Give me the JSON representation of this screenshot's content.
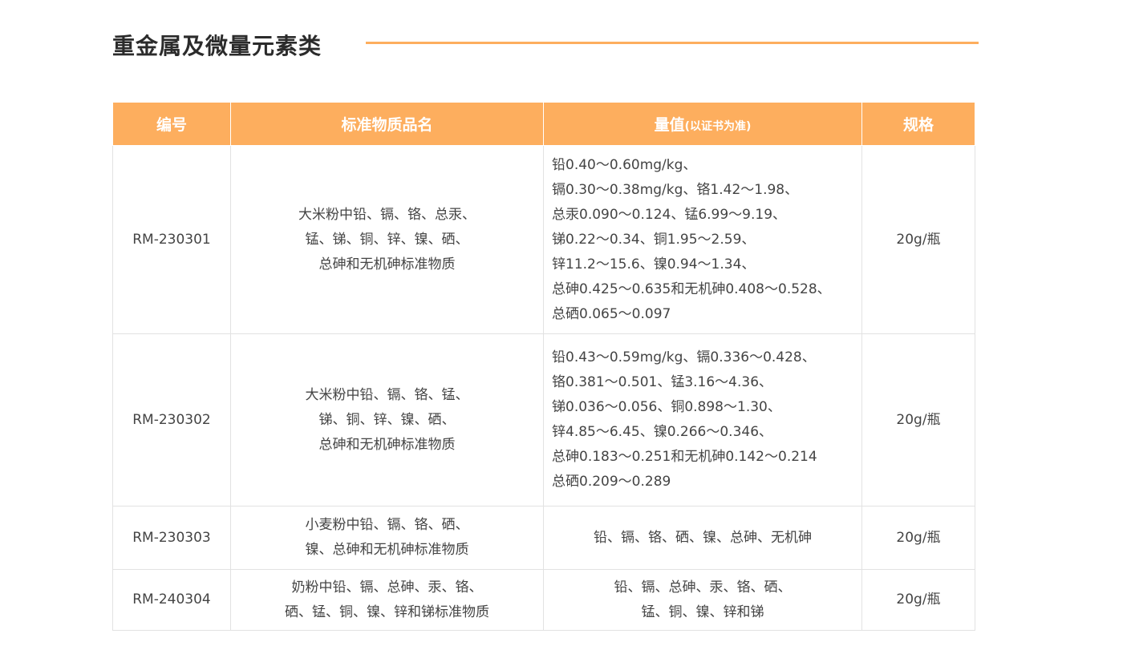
{
  "title": "重金属及微量元素类",
  "colors": {
    "accent": "#FDAE5E"
  },
  "table": {
    "headers": [
      "编号",
      "标准物质品名",
      "量值",
      "(以证书为准)",
      "规格"
    ],
    "rows": [
      {
        "id": "RM-230301",
        "name": [
          "大米粉中铅、镉、铬、总汞、",
          "锰、锑、铜、锌、镍、硒、",
          "总砷和无机砷标准物质"
        ],
        "value": [
          "铅0.40～0.60mg/kg、",
          "镉0.30～0.38mg/kg、铬1.42～1.98、",
          "总汞0.090～0.124、锰6.99～9.19、",
          "锑0.22～0.34、铜1.95～2.59、",
          "锌11.2～15.6、镍0.94～1.34、",
          "总砷0.425～0.635和无机砷0.408～0.528、",
          "总硒0.065～0.097"
        ],
        "spec": "20g/瓶"
      },
      {
        "id": "RM-230302",
        "name": [
          "大米粉中铅、镉、铬、锰、",
          "锑、铜、锌、镍、硒、",
          "总砷和无机砷标准物质"
        ],
        "value": [
          "铅0.43～0.59mg/kg、镉0.336～0.428、",
          "铬0.381～0.501、锰3.16～4.36、",
          "锑0.036～0.056、铜0.898～1.30、",
          "锌4.85～6.45、镍0.266～0.346、",
          "总砷0.183～0.251和无机砷0.142～0.214",
          "总硒0.209～0.289"
        ],
        "spec": "20g/瓶"
      },
      {
        "id": "RM-230303",
        "name": [
          "小麦粉中铅、镉、铬、硒、",
          "镍、总砷和无机砷标准物质"
        ],
        "value": [
          "铅、镉、铬、硒、镍、总砷、无机砷"
        ],
        "spec": "20g/瓶"
      },
      {
        "id": "RM-240304",
        "name": [
          "奶粉中铅、镉、总砷、汞、铬、",
          "硒、锰、铜、镍、锌和锑标准物质"
        ],
        "value": [
          "铅、镉、总砷、汞、铬、硒、",
          "锰、铜、镍、锌和锑"
        ],
        "spec": "20g/瓶"
      }
    ]
  }
}
